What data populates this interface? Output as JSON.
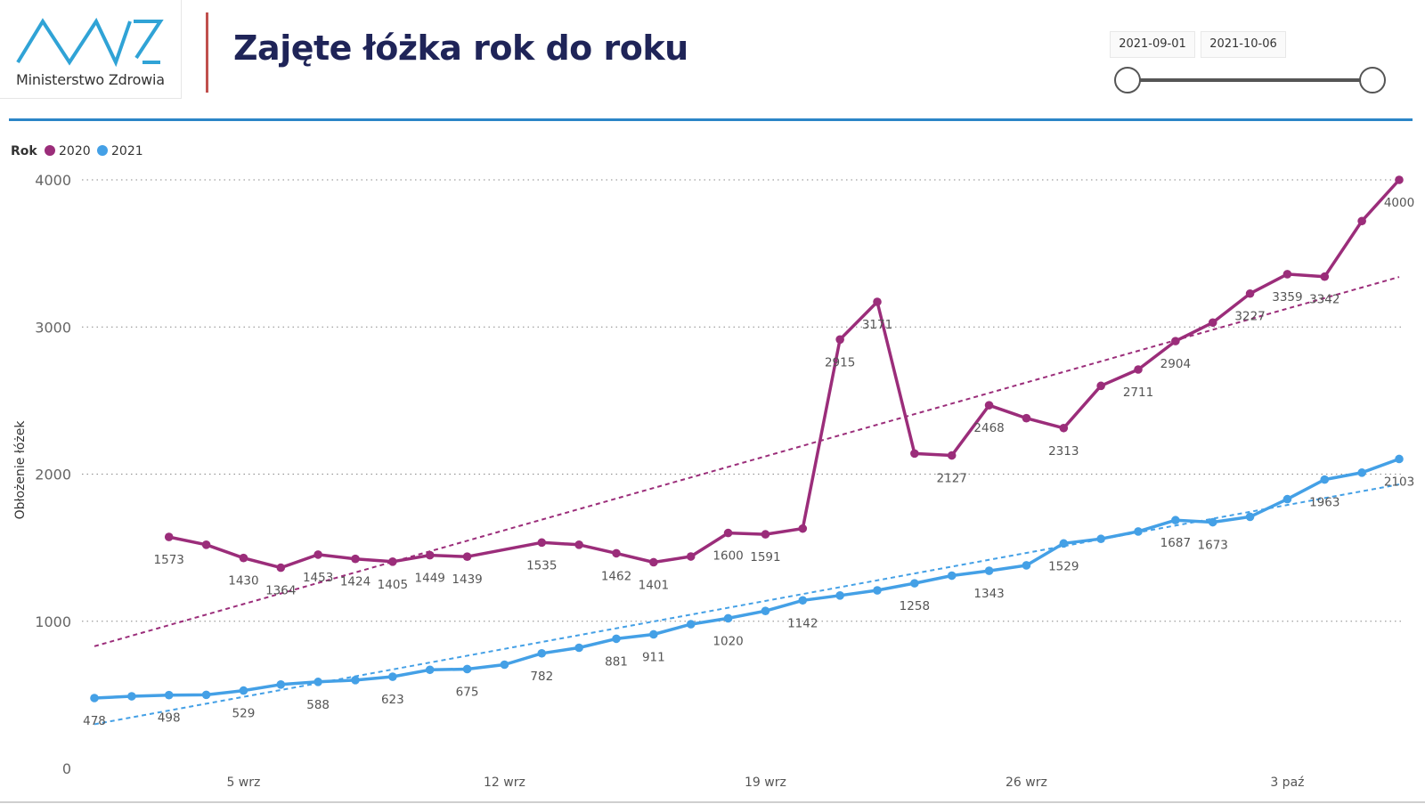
{
  "header": {
    "logo_caption": "Ministerstwo Zdrowia",
    "title": "Zajęte łóżka rok do roku"
  },
  "date_slicer": {
    "start": "2021-09-01",
    "end": "2021-10-06"
  },
  "colors": {
    "series_2020": "#9b2d7a",
    "series_2021": "#44a0e6",
    "header_rule": "#2b85c7",
    "title": "#1f2458",
    "divider": "#c0504d"
  },
  "chart_data": {
    "type": "line",
    "legend_title": "Rok",
    "legend_position": "top-left",
    "ylabel": "Obłożenie łóżek",
    "xlabel": "",
    "ylim": [
      0,
      4000
    ],
    "yticks": [
      0,
      1000,
      2000,
      3000,
      4000
    ],
    "grid": true,
    "x_start": "2021-09-01",
    "x_end": "2021-10-06",
    "x_tick_labels": [
      {
        "date": "2021-09-05",
        "label": "5 wrz"
      },
      {
        "date": "2021-09-12",
        "label": "12 wrz"
      },
      {
        "date": "2021-09-19",
        "label": "19 wrz"
      },
      {
        "date": "2021-09-26",
        "label": "26 wrz"
      },
      {
        "date": "2021-10-03",
        "label": "3 paź"
      }
    ],
    "series": [
      {
        "name": "2020",
        "color": "#9b2d7a",
        "trend": {
          "start": 830,
          "end": 3340
        },
        "points": [
          {
            "date": "2021-09-03",
            "value": 1573,
            "label": "1573"
          },
          {
            "date": "2021-09-04",
            "value": 1520
          },
          {
            "date": "2021-09-05",
            "value": 1430,
            "label": "1430"
          },
          {
            "date": "2021-09-06",
            "value": 1364,
            "label": "1364"
          },
          {
            "date": "2021-09-07",
            "value": 1453,
            "label": "1453"
          },
          {
            "date": "2021-09-08",
            "value": 1424,
            "label": "1424"
          },
          {
            "date": "2021-09-09",
            "value": 1405,
            "label": "1405"
          },
          {
            "date": "2021-09-10",
            "value": 1449,
            "label": "1449"
          },
          {
            "date": "2021-09-11",
            "value": 1439,
            "label": "1439"
          },
          {
            "date": "2021-09-13",
            "value": 1535,
            "label": "1535"
          },
          {
            "date": "2021-09-14",
            "value": 1520
          },
          {
            "date": "2021-09-15",
            "value": 1462,
            "label": "1462"
          },
          {
            "date": "2021-09-16",
            "value": 1401,
            "label": "1401"
          },
          {
            "date": "2021-09-17",
            "value": 1440
          },
          {
            "date": "2021-09-18",
            "value": 1600,
            "label": "1600"
          },
          {
            "date": "2021-09-19",
            "value": 1591,
            "label": "1591"
          },
          {
            "date": "2021-09-20",
            "value": 1630
          },
          {
            "date": "2021-09-21",
            "value": 2915,
            "label": "2915"
          },
          {
            "date": "2021-09-22",
            "value": 3171,
            "label": "3171"
          },
          {
            "date": "2021-09-23",
            "value": 2140
          },
          {
            "date": "2021-09-24",
            "value": 2127,
            "label": "2127"
          },
          {
            "date": "2021-09-25",
            "value": 2468,
            "label": "2468"
          },
          {
            "date": "2021-09-26",
            "value": 2380
          },
          {
            "date": "2021-09-27",
            "value": 2313,
            "label": "2313"
          },
          {
            "date": "2021-09-28",
            "value": 2600
          },
          {
            "date": "2021-09-29",
            "value": 2711,
            "label": "2711"
          },
          {
            "date": "2021-09-30",
            "value": 2904,
            "label": "2904"
          },
          {
            "date": "2021-10-01",
            "value": 3030
          },
          {
            "date": "2021-10-02",
            "value": 3227,
            "label": "3227"
          },
          {
            "date": "2021-10-03",
            "value": 3359,
            "label": "3359"
          },
          {
            "date": "2021-10-04",
            "value": 3342,
            "label": "3342"
          },
          {
            "date": "2021-10-05",
            "value": 3720
          },
          {
            "date": "2021-10-06",
            "value": 4000,
            "label": "4000"
          }
        ]
      },
      {
        "name": "2021",
        "color": "#44a0e6",
        "trend": {
          "start": 300,
          "end": 1930
        },
        "points": [
          {
            "date": "2021-09-01",
            "value": 478,
            "label": "478"
          },
          {
            "date": "2021-09-02",
            "value": 490
          },
          {
            "date": "2021-09-03",
            "value": 498,
            "label": "498"
          },
          {
            "date": "2021-09-04",
            "value": 500
          },
          {
            "date": "2021-09-05",
            "value": 529,
            "label": "529"
          },
          {
            "date": "2021-09-06",
            "value": 570
          },
          {
            "date": "2021-09-07",
            "value": 588,
            "label": "588"
          },
          {
            "date": "2021-09-08",
            "value": 600
          },
          {
            "date": "2021-09-09",
            "value": 623,
            "label": "623"
          },
          {
            "date": "2021-09-10",
            "value": 670
          },
          {
            "date": "2021-09-11",
            "value": 675,
            "label": "675"
          },
          {
            "date": "2021-09-12",
            "value": 705
          },
          {
            "date": "2021-09-13",
            "value": 782,
            "label": "782"
          },
          {
            "date": "2021-09-14",
            "value": 820
          },
          {
            "date": "2021-09-15",
            "value": 881,
            "label": "881"
          },
          {
            "date": "2021-09-16",
            "value": 911,
            "label": "911"
          },
          {
            "date": "2021-09-17",
            "value": 980
          },
          {
            "date": "2021-09-18",
            "value": 1020,
            "label": "1020"
          },
          {
            "date": "2021-09-19",
            "value": 1070
          },
          {
            "date": "2021-09-20",
            "value": 1142,
            "label": "1142"
          },
          {
            "date": "2021-09-21",
            "value": 1175
          },
          {
            "date": "2021-09-22",
            "value": 1210
          },
          {
            "date": "2021-09-23",
            "value": 1258,
            "label": "1258"
          },
          {
            "date": "2021-09-24",
            "value": 1310
          },
          {
            "date": "2021-09-25",
            "value": 1343,
            "label": "1343"
          },
          {
            "date": "2021-09-26",
            "value": 1380
          },
          {
            "date": "2021-09-27",
            "value": 1529,
            "label": "1529"
          },
          {
            "date": "2021-09-28",
            "value": 1560
          },
          {
            "date": "2021-09-29",
            "value": 1610
          },
          {
            "date": "2021-09-30",
            "value": 1687,
            "label": "1687"
          },
          {
            "date": "2021-10-01",
            "value": 1673,
            "label": "1673"
          },
          {
            "date": "2021-10-02",
            "value": 1710
          },
          {
            "date": "2021-10-03",
            "value": 1830
          },
          {
            "date": "2021-10-04",
            "value": 1963,
            "label": "1963"
          },
          {
            "date": "2021-10-05",
            "value": 2010
          },
          {
            "date": "2021-10-06",
            "value": 2103,
            "label": "2103"
          }
        ]
      }
    ]
  }
}
